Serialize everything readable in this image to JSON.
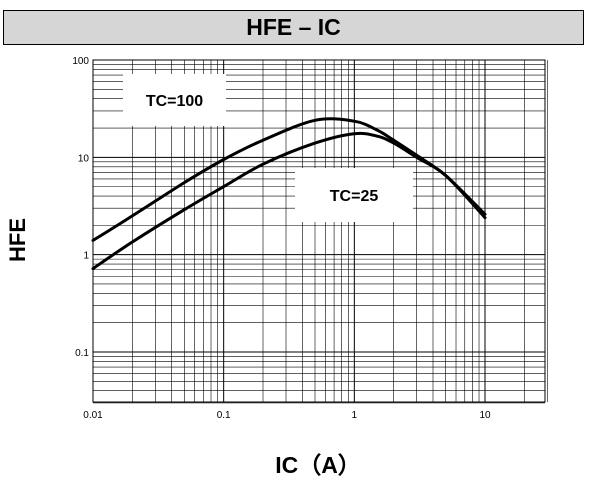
{
  "chart_data": {
    "type": "line",
    "title": "HFE – IC",
    "xlabel": "IC（A）",
    "ylabel": "HFE",
    "xscale": "log",
    "yscale": "log",
    "xlim": [
      0.01,
      30
    ],
    "ylim": [
      0.03,
      100
    ],
    "grid": true,
    "x_ticks": [
      {
        "label": "0.01",
        "value": 0.01
      },
      {
        "label": "0.1",
        "value": 0.1
      },
      {
        "label": "1",
        "value": 1
      },
      {
        "label": "10",
        "value": 10
      }
    ],
    "y_ticks": [
      {
        "label": "100",
        "value": 100
      },
      {
        "label": "10",
        "value": 10
      },
      {
        "label": "1",
        "value": 1
      },
      {
        "label": "0.1",
        "value": 0.1
      }
    ],
    "series": [
      {
        "name": "TC=100",
        "x": [
          0.01,
          0.02,
          0.05,
          0.1,
          0.2,
          0.5,
          1,
          1.5,
          2,
          3,
          5,
          10
        ],
        "y": [
          1.4,
          2.5,
          5.5,
          9.5,
          15,
          24,
          23.5,
          19,
          15,
          10.5,
          6.5,
          2.6
        ]
      },
      {
        "name": "TC=25",
        "x": [
          0.01,
          0.02,
          0.05,
          0.1,
          0.2,
          0.5,
          1,
          1.5,
          2,
          3,
          5,
          10
        ],
        "y": [
          0.72,
          1.35,
          2.9,
          5,
          8.5,
          14,
          17.5,
          16.5,
          14,
          10,
          6.5,
          2.4
        ]
      }
    ],
    "annotations": [
      {
        "text": "TC=100",
        "series": "TC=100"
      },
      {
        "text": "TC=25",
        "series": "TC=25"
      }
    ]
  }
}
